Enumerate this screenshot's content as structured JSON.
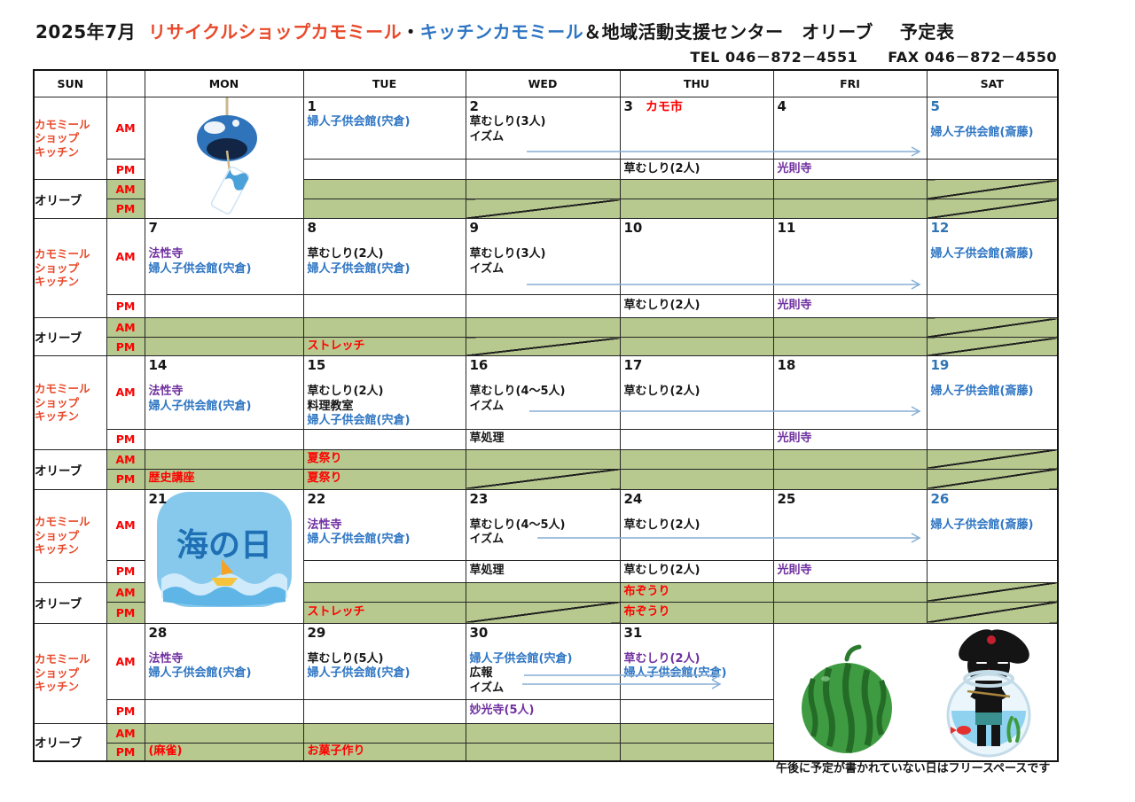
{
  "title": {
    "month": "2025年7月",
    "shop": "リサイクルショップカモミール",
    "dot": "・",
    "kitchen": "キッチンカモミール",
    "rest": "＆地域活動支援センター　オリーブ",
    "suffix": "予定表"
  },
  "contact": {
    "tel": "TEL 046－872－4551",
    "fax": "FAX 046－872－4550"
  },
  "footer_note": "午後に予定が書かれていない日はフリースペースです",
  "colors": {
    "red": "#fe0000",
    "orange": "#e8492a",
    "blue": "#2e75c3",
    "purple": "#7030a0",
    "sat_blue": "#2e75b6",
    "green": "#b7c98e",
    "arrow": "#85aed6",
    "black": "#161616"
  },
  "header": {
    "days": [
      {
        "label": "SUN",
        "color": "red"
      },
      {
        "label": ""
      },
      {
        "label": "MON"
      },
      {
        "label": "TUE"
      },
      {
        "label": "WED"
      },
      {
        "label": "THU"
      },
      {
        "label": "FRI"
      },
      {
        "label": "SAT",
        "color": "sat_blue"
      }
    ]
  },
  "row_labels": {
    "shop_lines": [
      "カモミール",
      "ショップ",
      "キッチン"
    ],
    "olive": "オリーブ",
    "am": "AM",
    "pm": "PM"
  },
  "images": {
    "wind_chime": "wind-chime illustration",
    "marine_day": "海の日 (Marine Day) illustration",
    "watermelon_rabbit": "watermelon and black rabbit in fishbowl illustration"
  },
  "weeks": [
    {
      "days": [
        {
          "col": "MON",
          "type": "image",
          "image": "wind_chime"
        },
        {
          "col": "TUE",
          "number": "1",
          "am": [
            [
              "婦人子供会館(宍倉)",
              "blue"
            ]
          ]
        },
        {
          "col": "WED",
          "number": "2",
          "am": [
            [
              "草むしり(3人)",
              "black"
            ],
            [
              "イズム",
              "black"
            ]
          ],
          "diag": [
            "opm"
          ]
        },
        {
          "col": "THU",
          "number": "3",
          "badge": "カモ市",
          "pm": [
            [
              "草むしり(2人)",
              "black"
            ]
          ]
        },
        {
          "col": "FRI",
          "number": "4",
          "pm": [
            [
              "光則寺",
              "purple"
            ]
          ]
        },
        {
          "col": "SAT",
          "number": "5",
          "number_color": "sat_blue",
          "am": [
            [
              "婦人子供会館(斎藤)",
              "blue"
            ]
          ],
          "diag": [
            "oam",
            "opm"
          ]
        }
      ]
    },
    {
      "days": [
        {
          "col": "MON",
          "number": "7",
          "am": [
            [
              "法性寺",
              "purple"
            ],
            [
              "婦人子供会館(宍倉)",
              "blue"
            ]
          ]
        },
        {
          "col": "TUE",
          "number": "8",
          "am": [
            [
              "草むしり(2人)",
              "black"
            ],
            [
              "婦人子供会館(宍倉)",
              "blue"
            ]
          ],
          "olive_pm": [
            [
              "ストレッチ",
              "red"
            ]
          ]
        },
        {
          "col": "WED",
          "number": "9",
          "am": [
            [
              "草むしり(3人)",
              "black"
            ],
            [
              "イズム",
              "black"
            ]
          ],
          "diag": [
            "opm"
          ]
        },
        {
          "col": "THU",
          "number": "10",
          "pm": [
            [
              "草むしり(2人)",
              "black"
            ]
          ]
        },
        {
          "col": "FRI",
          "number": "11",
          "pm": [
            [
              "光則寺",
              "purple"
            ]
          ]
        },
        {
          "col": "SAT",
          "number": "12",
          "number_color": "sat_blue",
          "am": [
            [
              "婦人子供会館(斎藤)",
              "blue"
            ]
          ],
          "diag": [
            "oam",
            "opm"
          ]
        }
      ]
    },
    {
      "days": [
        {
          "col": "MON",
          "number": "14",
          "am": [
            [
              "法性寺",
              "purple"
            ],
            [
              "婦人子供会館(宍倉)",
              "blue"
            ]
          ],
          "olive_pm": [
            [
              "歴史講座",
              "red"
            ]
          ]
        },
        {
          "col": "TUE",
          "number": "15",
          "am": [
            [
              "草むしり(2人)",
              "black"
            ],
            [
              "料理教室",
              "black"
            ],
            [
              "婦人子供会館(宍倉)",
              "blue"
            ]
          ],
          "olive_am": [
            [
              "夏祭り",
              "red"
            ]
          ],
          "olive_pm": [
            [
              "夏祭り",
              "red"
            ]
          ]
        },
        {
          "col": "WED",
          "number": "16",
          "am": [
            [
              "草むしり(4～5人)",
              "black"
            ],
            [
              "イズム",
              "black"
            ]
          ],
          "pm": [
            [
              "草処理",
              "black"
            ]
          ],
          "diag": [
            "opm"
          ]
        },
        {
          "col": "THU",
          "number": "17",
          "am": [
            [
              "草むしり(2人)",
              "black"
            ]
          ]
        },
        {
          "col": "FRI",
          "number": "18",
          "pm": [
            [
              "光則寺",
              "purple"
            ]
          ]
        },
        {
          "col": "SAT",
          "number": "19",
          "number_color": "sat_blue",
          "am": [
            [
              "婦人子供会館(斎藤)",
              "blue"
            ]
          ],
          "diag": [
            "oam",
            "opm"
          ]
        }
      ]
    },
    {
      "days": [
        {
          "col": "MON",
          "type": "image",
          "image": "marine_day",
          "number": "21"
        },
        {
          "col": "TUE",
          "number": "22",
          "am": [
            [
              "法性寺",
              "purple"
            ],
            [
              "婦人子供会館(宍倉)",
              "blue"
            ]
          ],
          "olive_pm": [
            [
              "ストレッチ",
              "red"
            ]
          ]
        },
        {
          "col": "WED",
          "number": "23",
          "am": [
            [
              "草むしり(4～5人)",
              "black"
            ],
            [
              "イズム",
              "black"
            ]
          ],
          "pm": [
            [
              "草処理",
              "black"
            ]
          ],
          "diag": [
            "opm"
          ]
        },
        {
          "col": "THU",
          "number": "24",
          "am": [
            [
              "草むしり(2人)",
              "black"
            ]
          ],
          "pm": [
            [
              "草むしり(2人)",
              "black"
            ]
          ],
          "olive_am": [
            [
              "布ぞうり",
              "red"
            ]
          ],
          "olive_pm": [
            [
              "布ぞうり",
              "red"
            ]
          ]
        },
        {
          "col": "FRI",
          "number": "25",
          "pm": [
            [
              "光則寺",
              "purple"
            ]
          ]
        },
        {
          "col": "SAT",
          "number": "26",
          "number_color": "sat_blue",
          "am": [
            [
              "婦人子供会館(斎藤)",
              "blue"
            ]
          ],
          "diag": [
            "oam",
            "opm"
          ]
        }
      ]
    },
    {
      "days": [
        {
          "col": "MON",
          "number": "28",
          "am": [
            [
              "法性寺",
              "purple"
            ],
            [
              "婦人子供会館(宍倉)",
              "blue"
            ]
          ],
          "olive_pm": [
            [
              "(麻雀)",
              "red"
            ]
          ]
        },
        {
          "col": "TUE",
          "number": "29",
          "am": [
            [
              "草むしり(5人)",
              "black"
            ],
            [
              "婦人子供会館(宍倉)",
              "blue"
            ]
          ],
          "olive_pm": [
            [
              "お菓子作り",
              "red"
            ]
          ]
        },
        {
          "col": "WED",
          "number": "30",
          "am": [
            [
              "婦人子供会館(宍倉)",
              "blue"
            ],
            [
              "広報",
              "black"
            ],
            [
              "イズム",
              "black"
            ]
          ],
          "pm": [
            [
              "妙光寺(5人)",
              "purple"
            ]
          ]
        },
        {
          "col": "THU",
          "number": "31",
          "am": [
            [
              "草むしり(2人)",
              "purple"
            ],
            [
              "婦人子供会館(宍倉)",
              "blue"
            ]
          ]
        },
        {
          "col": "FRI",
          "type": "image",
          "image": "watermelon_rabbit",
          "colspan": 2
        }
      ]
    }
  ],
  "arrows": [
    {
      "week": 1,
      "from_col": "WED",
      "to_col": "FRI"
    },
    {
      "week": 2,
      "from_col": "WED",
      "to_col": "FRI"
    },
    {
      "week": 3,
      "from_col": "WED",
      "to_col": "FRI"
    },
    {
      "week": 4,
      "from_col": "WED",
      "to_col": "FRI"
    },
    {
      "week": 5,
      "from_col": "WED",
      "to_col": "THU",
      "count": 2
    }
  ]
}
